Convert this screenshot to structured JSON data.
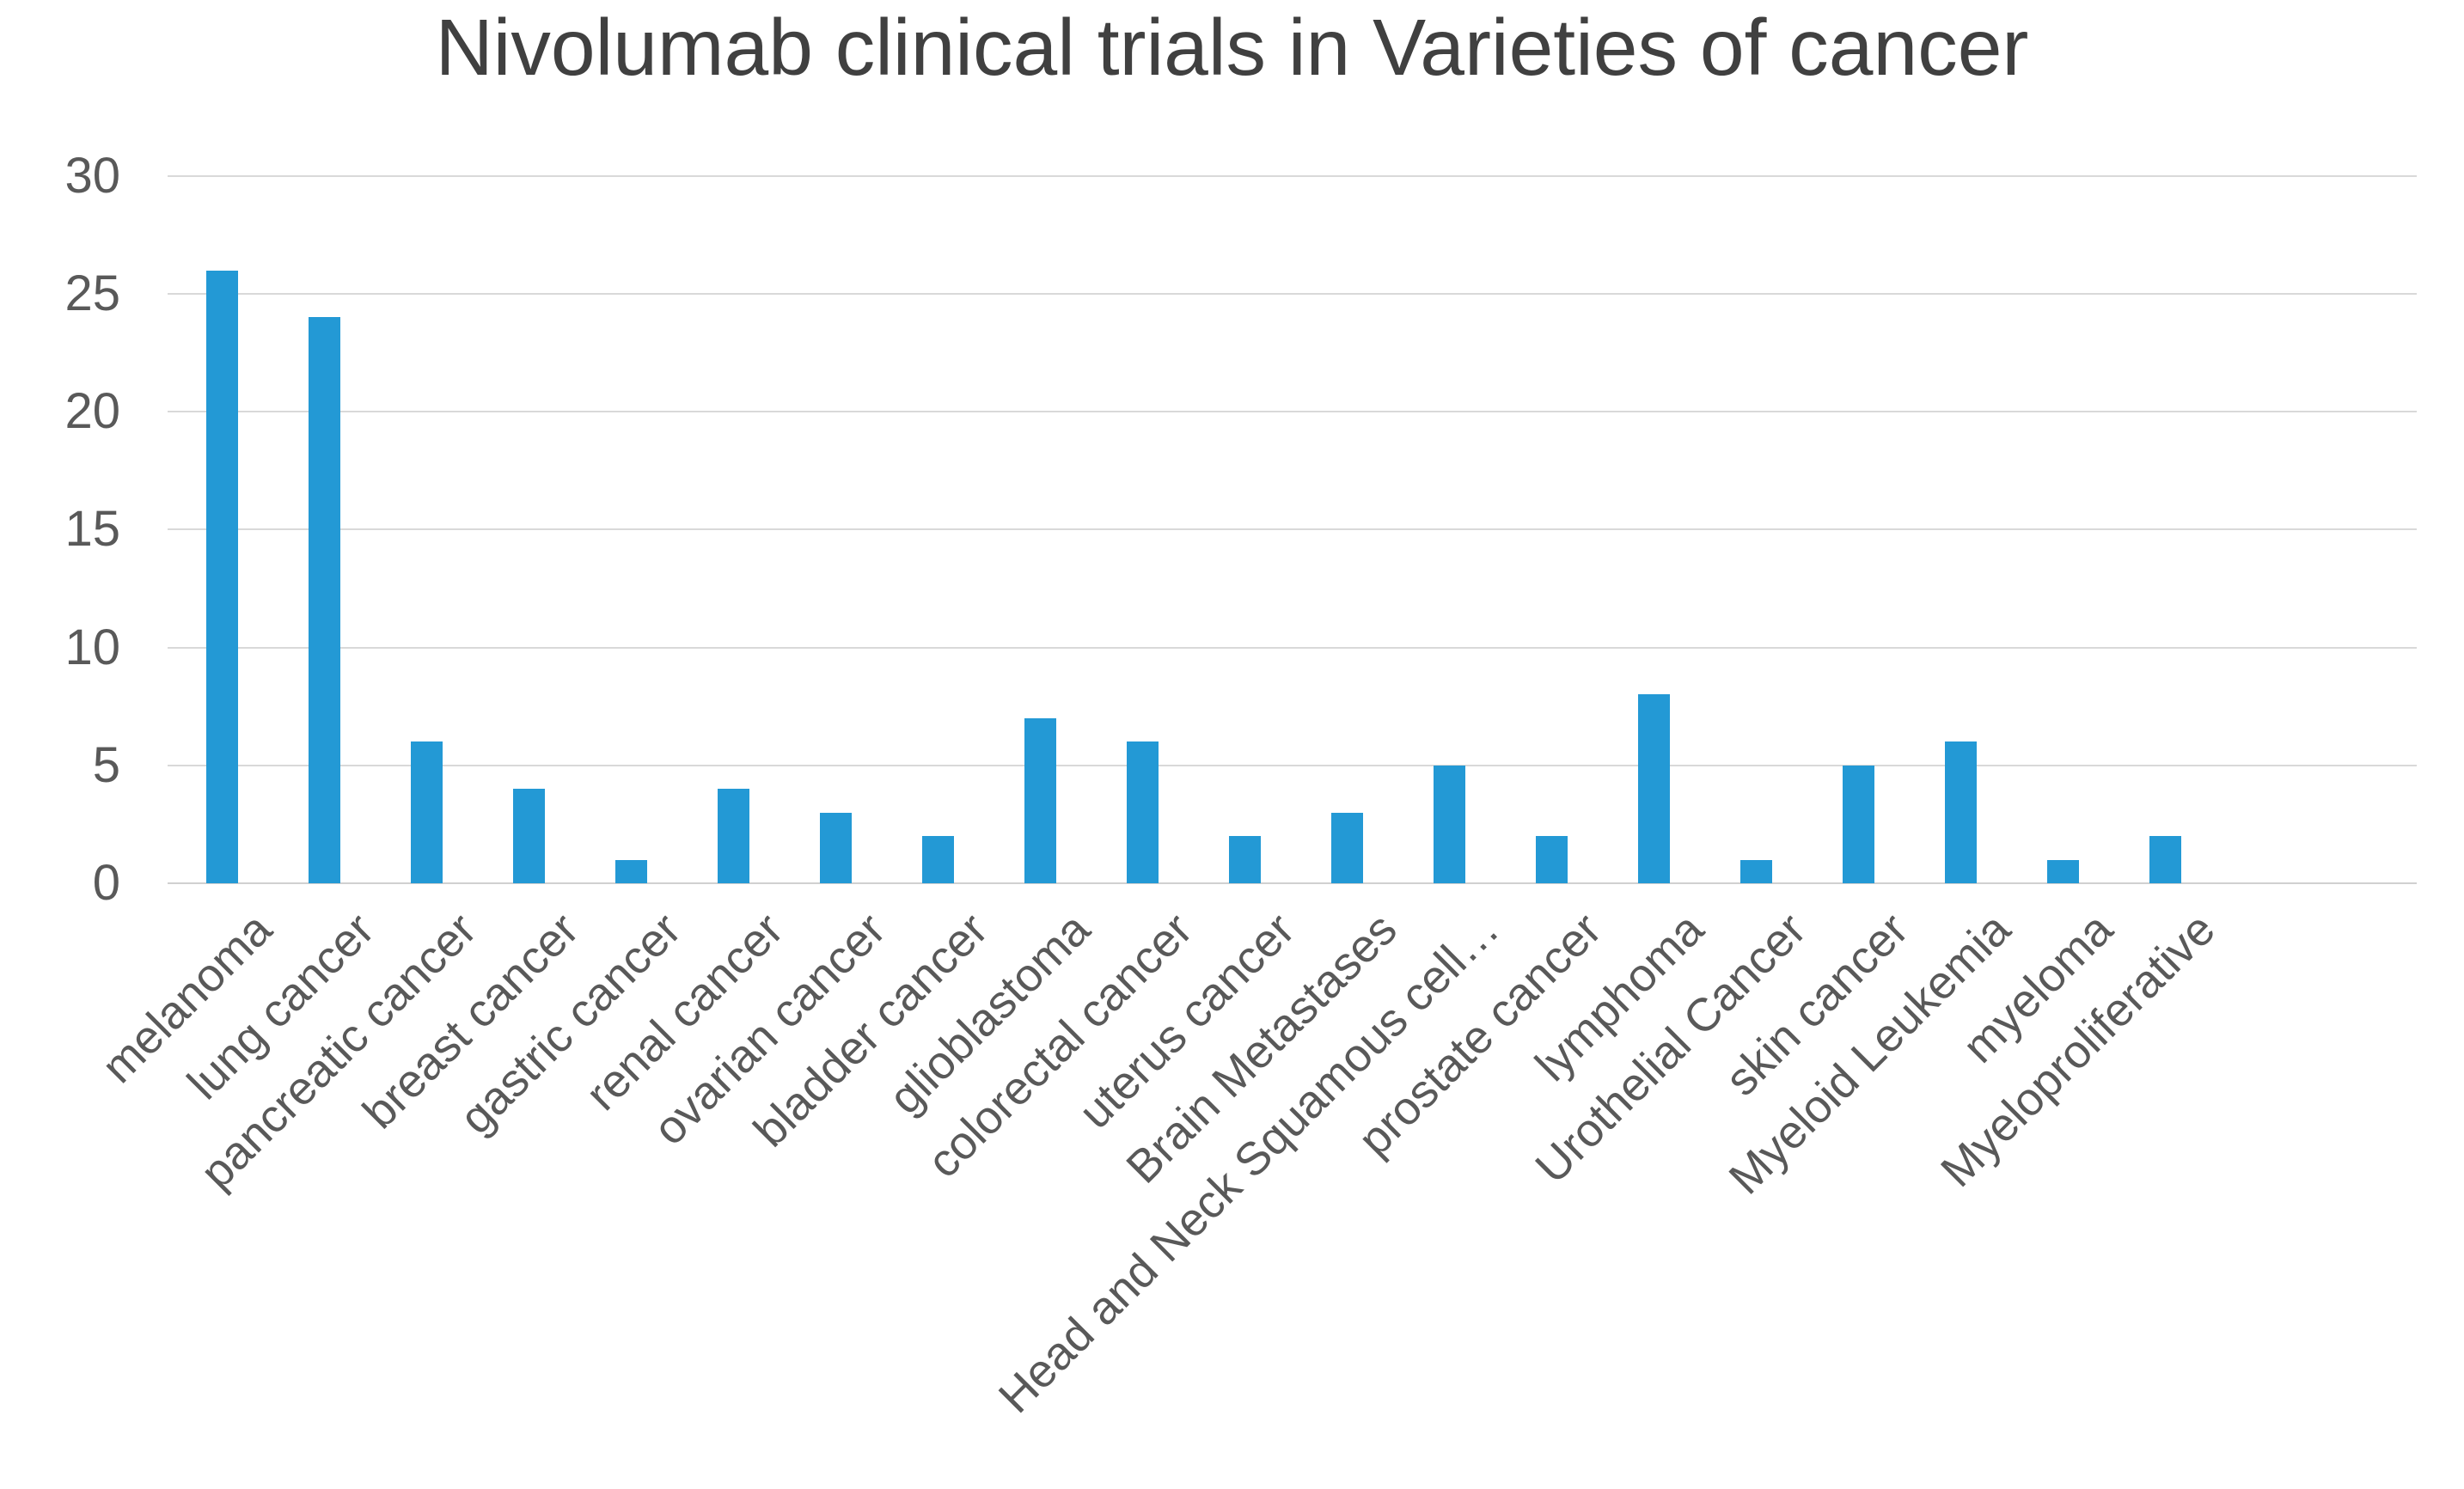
{
  "chart_data": {
    "type": "bar",
    "title": "Nivolumab clinical trials in Varieties of cancer",
    "categories": [
      "melanoma",
      "lung cancer",
      "pancreatic cancer",
      "breast cancer",
      "gastric cancer",
      "renal cancer",
      "ovarian cancer",
      "bladder cancer",
      "glioblastoma",
      "colorectal cancer",
      "uterus cancer",
      "Brain Metastases",
      "Head and Neck Squamous cell…",
      "prostate cancer",
      "lymphoma",
      "Urothelial Cancer",
      "skin cancer",
      "Myeloid Leukemia",
      "myeloma",
      "Myeloproliferative"
    ],
    "values": [
      26,
      24,
      6,
      4,
      1,
      4,
      3,
      2,
      7,
      6,
      2,
      3,
      5,
      2,
      8,
      1,
      5,
      6,
      1,
      2
    ],
    "xlabel": "",
    "ylabel": "",
    "ylim": [
      0,
      30
    ],
    "yticks": [
      0,
      5,
      10,
      15,
      20,
      25,
      30
    ],
    "grid": true,
    "legend": false,
    "bar_color": "#2399d5",
    "gridline_color": "#d9d9d9",
    "axis_text_color": "#595959",
    "title_color": "#404040"
  }
}
